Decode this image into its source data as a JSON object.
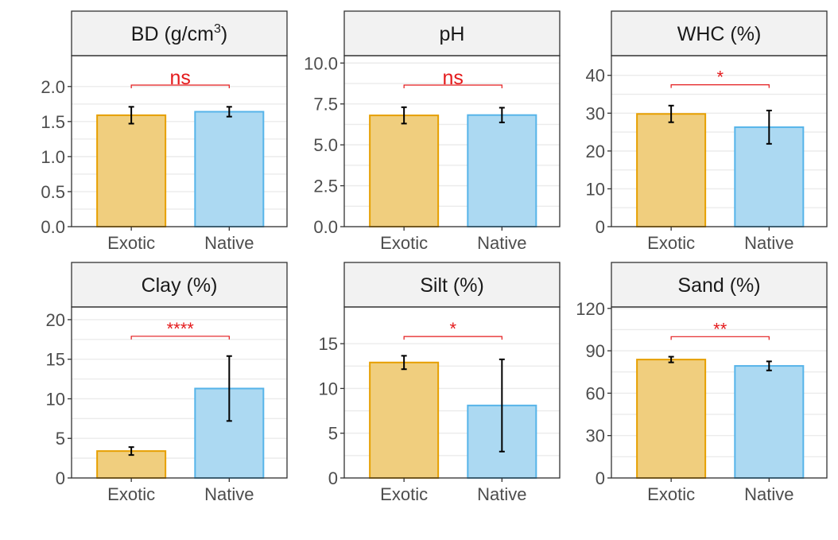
{
  "colors": {
    "Exotic": {
      "fill": "#f0ce7e",
      "stroke": "#e69f00"
    },
    "Native": {
      "fill": "#acd9f2",
      "stroke": "#56b4e9"
    },
    "significance": "#e41a1c"
  },
  "chart_data": [
    {
      "type": "bar",
      "title": "BD (g/cm³)",
      "title_main": "BD  (g/cm",
      "title_sup": "3",
      "title_tail": ")",
      "categories": [
        "Exotic",
        "Native"
      ],
      "values": [
        1.59,
        1.64
      ],
      "errors": [
        0.12,
        0.07
      ],
      "ylim": [
        0,
        2.44
      ],
      "yticks": [
        0.0,
        0.5,
        1.0,
        1.5,
        2.0
      ],
      "ytick_labels": [
        "0.0",
        "0.5",
        "1.0",
        "1.5",
        "2.0"
      ],
      "significance": "ns",
      "bracket_y": 2.02
    },
    {
      "type": "bar",
      "title": "pH",
      "categories": [
        "Exotic",
        "Native"
      ],
      "values": [
        6.8,
        6.82
      ],
      "errors": [
        0.5,
        0.45
      ],
      "ylim": [
        0,
        10.45
      ],
      "yticks": [
        0.0,
        2.5,
        5.0,
        7.5,
        10.0
      ],
      "ytick_labels": [
        "0.0",
        "2.5",
        "5.0",
        "7.5",
        "10.0"
      ],
      "significance": "ns",
      "bracket_y": 8.65
    },
    {
      "type": "bar",
      "title": "WHC (%)",
      "categories": [
        "Exotic",
        "Native"
      ],
      "values": [
        29.8,
        26.3
      ],
      "errors": [
        2.2,
        4.4
      ],
      "ylim": [
        0,
        45.2
      ],
      "yticks": [
        0,
        10,
        20,
        30,
        40
      ],
      "ytick_labels": [
        "0",
        "10",
        "20",
        "30",
        "40"
      ],
      "significance": "*",
      "bracket_y": 37.5
    },
    {
      "type": "bar",
      "title": "Clay (%)",
      "categories": [
        "Exotic",
        "Native"
      ],
      "values": [
        3.4,
        11.3
      ],
      "errors": [
        0.5,
        4.1
      ],
      "ylim": [
        0,
        21.6
      ],
      "yticks": [
        0,
        5,
        10,
        15,
        20
      ],
      "ytick_labels": [
        "0",
        "5",
        "10",
        "15",
        "20"
      ],
      "significance": "****",
      "bracket_y": 17.9
    },
    {
      "type": "bar",
      "title": "Silt (%)",
      "categories": [
        "Exotic",
        "Native"
      ],
      "values": [
        12.9,
        8.1
      ],
      "errors": [
        0.75,
        5.15
      ],
      "ylim": [
        0,
        19.1
      ],
      "yticks": [
        0,
        5,
        10,
        15
      ],
      "ytick_labels": [
        "0",
        "5",
        "10",
        "15"
      ],
      "significance": "*",
      "bracket_y": 15.8
    },
    {
      "type": "bar",
      "title": "Sand (%)",
      "categories": [
        "Exotic",
        "Native"
      ],
      "values": [
        83.8,
        79.3
      ],
      "errors": [
        2.0,
        3.2
      ],
      "ylim": [
        0,
        121
      ],
      "yticks": [
        0,
        30,
        60,
        90,
        120
      ],
      "ytick_labels": [
        "0",
        "30",
        "60",
        "90",
        "120"
      ],
      "significance": "**",
      "bracket_y": 100
    }
  ]
}
